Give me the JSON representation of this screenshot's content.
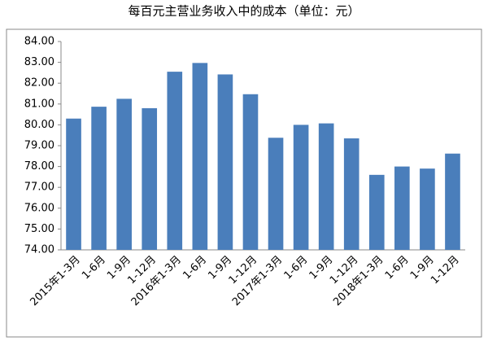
{
  "chart_data": {
    "type": "bar",
    "title": "每百元主营业务收入中的成本（单位：元）",
    "categories": [
      "2015年1-3月",
      "1-6月",
      "1-9月",
      "1-12月",
      "2016年1-3月",
      "1-6月",
      "1-9月",
      "1-12月",
      "2017年1-3月",
      "1-6月",
      "1-9月",
      "1-12月",
      "2018年1-3月",
      "1-6月",
      "1-9月",
      "1-12月"
    ],
    "values": [
      80.3,
      80.87,
      81.25,
      80.8,
      82.55,
      82.97,
      82.42,
      81.47,
      79.38,
      80.0,
      80.07,
      79.35,
      77.6,
      78.0,
      77.9,
      78.62
    ],
    "color": "#4a7ebb",
    "ylim": [
      74,
      84
    ],
    "yticks": [
      {
        "value": 74,
        "label": "74.00"
      },
      {
        "value": 75,
        "label": "75.00"
      },
      {
        "value": 76,
        "label": "76.00"
      },
      {
        "value": 77,
        "label": "77.00"
      },
      {
        "value": 78,
        "label": "78.00"
      },
      {
        "value": 79,
        "label": "79.00"
      },
      {
        "value": 80,
        "label": "80.00"
      },
      {
        "value": 81,
        "label": "81.00"
      },
      {
        "value": 82,
        "label": "82.00"
      },
      {
        "value": 83,
        "label": "83.00"
      },
      {
        "value": 84,
        "label": "84.00"
      }
    ],
    "grid": false
  }
}
